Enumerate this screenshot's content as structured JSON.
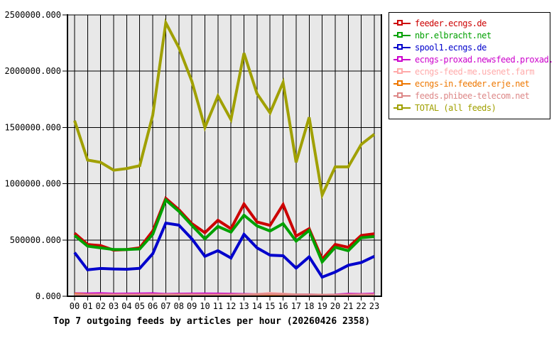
{
  "title": "Top 7 outgoing feeds by articles per hour (20260426 2358)",
  "chart_data": {
    "type": "line",
    "x_tick_labels": [
      "00",
      "01",
      "02",
      "03",
      "04",
      "05",
      "06",
      "07",
      "08",
      "09",
      "10",
      "11",
      "12",
      "13",
      "14",
      "15",
      "16",
      "17",
      "18",
      "19",
      "20",
      "21",
      "22",
      "23"
    ],
    "xlabel": "",
    "ylabel": "",
    "ylim": [
      0,
      2500000
    ],
    "y_ticks": [
      0,
      500000,
      1000000,
      1500000,
      2000000,
      2500000
    ],
    "y_tick_labels": [
      "0.000",
      "500000.000",
      "1000000.000",
      "1500000.000",
      "2000000.000",
      "2500000.000"
    ],
    "grid": "both",
    "plot_background": "#e8e8e8",
    "gridline_color": "#000000",
    "legend_position": "top-right",
    "series": [
      {
        "name": "feeder.ecngs.de",
        "color": "#cc0000",
        "values": [
          560000,
          460000,
          450000,
          410000,
          415000,
          430000,
          580000,
          870000,
          770000,
          645000,
          565000,
          675000,
          600000,
          820000,
          660000,
          630000,
          815000,
          535000,
          600000,
          330000,
          460000,
          435000,
          540000,
          555000
        ]
      },
      {
        "name": "nbr.elbracht.net",
        "color": "#00a000",
        "values": [
          540000,
          445000,
          430000,
          415000,
          415000,
          420000,
          550000,
          855000,
          755000,
          630000,
          510000,
          620000,
          570000,
          720000,
          625000,
          580000,
          645000,
          490000,
          585000,
          305000,
          435000,
          405000,
          520000,
          530000
        ]
      },
      {
        "name": "spool1.ecngs.de",
        "color": "#0000cc",
        "values": [
          388000,
          235000,
          247000,
          242000,
          240000,
          248000,
          378000,
          650000,
          632000,
          510000,
          355000,
          405000,
          340000,
          550000,
          430000,
          365000,
          360000,
          250000,
          350000,
          170000,
          215000,
          275000,
          300000,
          355000
        ]
      },
      {
        "name": "ecngs-proxad.newsfeed.proxad.net",
        "color": "#cc00cc",
        "values": [
          25000,
          24000,
          26000,
          22000,
          23000,
          24000,
          25000,
          20000,
          22000,
          23000,
          24000,
          23000,
          21000,
          19000,
          18000,
          20000,
          17000,
          15000,
          14000,
          12000,
          14000,
          21000,
          19000,
          23000
        ]
      },
      {
        "name": "ecngs-feed-me.usenet.farm",
        "color": "#ffaaaa",
        "values": [
          16000,
          14000,
          15000,
          14000,
          14000,
          14000,
          15000,
          14000,
          15000,
          14000,
          13000,
          13000,
          13000,
          14000,
          19000,
          28000,
          22000,
          15000,
          13000,
          12000,
          12000,
          13000,
          14000,
          15000
        ]
      },
      {
        "name": "ecngs-in.feeder.erje.net",
        "color": "#ee7700",
        "values": [
          22000,
          15000,
          12000,
          11000,
          11000,
          11000,
          12000,
          12000,
          12000,
          11000,
          10000,
          10000,
          10000,
          10000,
          10000,
          10000,
          10000,
          9000,
          9000,
          8000,
          9000,
          10000,
          10000,
          11000
        ]
      },
      {
        "name": "feeds.phibee-telecom.net",
        "color": "#dd8888",
        "values": [
          15000,
          14000,
          15000,
          14000,
          14000,
          14000,
          15000,
          15000,
          16000,
          15000,
          14000,
          14000,
          14000,
          15000,
          17000,
          20000,
          18000,
          15000,
          14000,
          13000,
          13000,
          14000,
          14000,
          15000
        ]
      },
      {
        "name": "TOTAL (all feeds)",
        "color": "#a0a000",
        "values": [
          1560000,
          1210000,
          1190000,
          1120000,
          1135000,
          1160000,
          1610000,
          2430000,
          2210000,
          1910000,
          1500000,
          1780000,
          1570000,
          2160000,
          1800000,
          1630000,
          1900000,
          1190000,
          1590000,
          900000,
          1150000,
          1150000,
          1350000,
          1440000
        ]
      }
    ]
  }
}
